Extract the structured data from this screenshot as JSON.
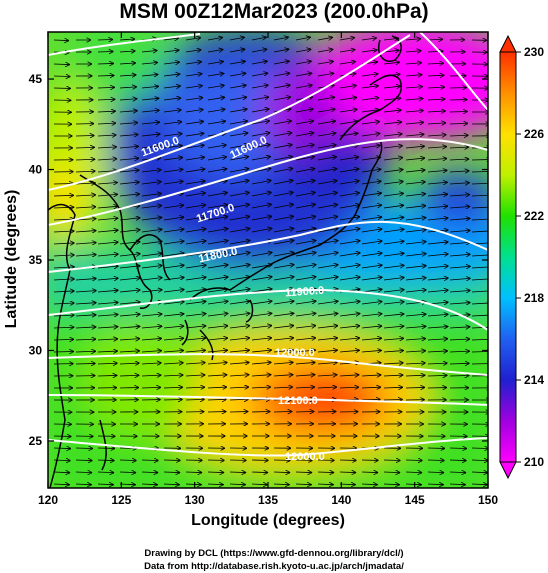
{
  "title": "MSM 00Z12Mar2023 (200.0hPa)",
  "x_axis": {
    "label": "Longitude (degrees)",
    "range": [
      120,
      150
    ],
    "ticks": [
      "120",
      "125",
      "130",
      "135",
      "140",
      "145",
      "150"
    ]
  },
  "y_axis": {
    "label": "Latitude  (degrees)",
    "range": [
      22.4,
      47.6
    ],
    "ticks": [
      "25",
      "30",
      "35",
      "40",
      "45"
    ]
  },
  "colorbar": {
    "range": [
      210,
      230
    ],
    "ticks": [
      "210",
      "214",
      "218",
      "222",
      "226",
      "230"
    ],
    "colors": [
      "#ff00ff",
      "#a000e0",
      "#2020d0",
      "#2060f0",
      "#00c0ff",
      "#00e090",
      "#40e000",
      "#c0f000",
      "#ffe000",
      "#ff9000",
      "#ff3000"
    ]
  },
  "contour_labels": [
    "11600.0",
    "11700.0",
    "11800.0",
    "11900.0",
    "12000.0",
    "12100.0",
    "12000.0",
    "11600.0"
  ],
  "credits": {
    "line1": "Drawing by DCL (https://www.gfd-dennou.org/library/dcl/)",
    "line2": "Data from http://database.rish.kyoto-u.ac.jp/arch/jmadata/"
  }
}
